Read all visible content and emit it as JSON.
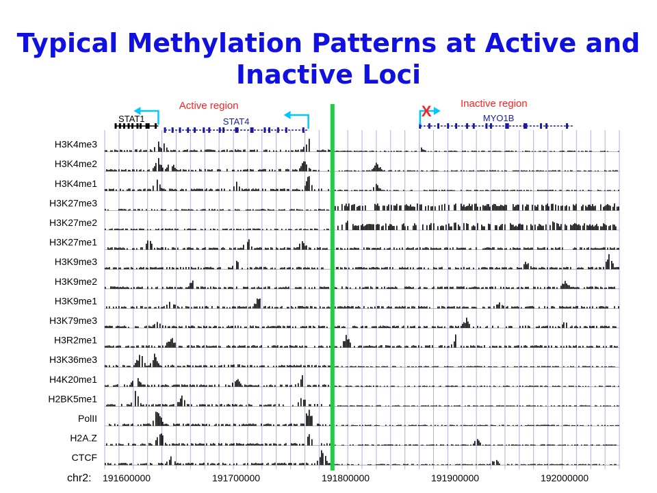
{
  "slide": {
    "title_line1": "Typical Methylation Patterns at Active and",
    "title_line2": "Inactive Loci"
  },
  "chart_data": {
    "type": "genome_tracks",
    "chromosome": "chr2:",
    "x_ticks": [
      191600000,
      191700000,
      191800000,
      191900000,
      192000000
    ],
    "x_tick_labels": [
      "191600000",
      "191700000",
      "191800000",
      "191900000",
      "192000000"
    ],
    "x_range": [
      191580000,
      192050000
    ],
    "region_labels": [
      {
        "text": "Active region",
        "color": "#ff2020"
      },
      {
        "text": "Inactive region",
        "color": "#ff2020"
      }
    ],
    "genes": [
      {
        "name": "STAT1",
        "start": 191590000,
        "end": 191629000,
        "strand": "-",
        "tss_arrow": "left",
        "arrow_color": "#00c8ff"
      },
      {
        "name": "STAT4",
        "start": 191635000,
        "end": 191766000,
        "strand": "-",
        "tss_arrow": "left",
        "arrow_color": "#00c8ff"
      },
      {
        "name": "MYO1B",
        "start": 191868000,
        "end": 192008000,
        "strand": "+",
        "tss_arrow": "right",
        "arrow_color": "#00c8ff",
        "tss_mark": "X",
        "tss_mark_color": "#ff2020"
      }
    ],
    "boundary_line": {
      "position": 191788000,
      "color": "#22cc44"
    },
    "tracks": [
      {
        "name": "H3K4me3",
        "peaks": [
          {
            "x": 191628000,
            "h": 0.7
          },
          {
            "x": 191633000,
            "h": 0.5
          },
          {
            "x": 191765000,
            "h": 0.9
          },
          {
            "x": 191868000,
            "h": 0.3
          }
        ]
      },
      {
        "name": "H3K4me2",
        "peaks": [
          {
            "x": 191628000,
            "h": 0.9
          },
          {
            "x": 191640000,
            "h": 0.6
          },
          {
            "x": 191762000,
            "h": 0.7
          },
          {
            "x": 191828000,
            "h": 0.5
          }
        ]
      },
      {
        "name": "H3K4me1",
        "peaks": [
          {
            "x": 191627000,
            "h": 0.8
          },
          {
            "x": 191700000,
            "h": 0.5
          },
          {
            "x": 191766000,
            "h": 0.9
          },
          {
            "x": 191828000,
            "h": 0.4
          }
        ]
      },
      {
        "name": "H3K27me3",
        "peaks": [
          {
            "x": 191800000,
            "h": 0.3
          },
          {
            "x": 191870000,
            "h": 0.6
          },
          {
            "x": 191950000,
            "h": 0.5
          },
          {
            "x": 192040000,
            "h": 0.4
          }
        ]
      },
      {
        "name": "H3K27me2",
        "peaks": [
          {
            "x": 191800000,
            "h": 0.6
          },
          {
            "x": 191900000,
            "h": 0.5
          },
          {
            "x": 191990000,
            "h": 0.6
          }
        ]
      },
      {
        "name": "H3K27me1",
        "peaks": [
          {
            "x": 191620000,
            "h": 0.6
          },
          {
            "x": 191710000,
            "h": 0.7
          },
          {
            "x": 191760000,
            "h": 0.6
          }
        ]
      },
      {
        "name": "H3K9me3",
        "peaks": [
          {
            "x": 191700000,
            "h": 0.5
          },
          {
            "x": 191965000,
            "h": 0.5
          },
          {
            "x": 192040000,
            "h": 0.8
          }
        ]
      },
      {
        "name": "H3K9me2",
        "peaks": [
          {
            "x": 191660000,
            "h": 0.5
          },
          {
            "x": 191850000,
            "h": 0.4
          },
          {
            "x": 192000000,
            "h": 0.5
          }
        ]
      },
      {
        "name": "H3K9me1",
        "peaks": [
          {
            "x": 191640000,
            "h": 0.6
          },
          {
            "x": 191720000,
            "h": 0.7
          },
          {
            "x": 191940000,
            "h": 0.5
          }
        ]
      },
      {
        "name": "H3K79me3",
        "peaks": [
          {
            "x": 191628000,
            "h": 0.6
          },
          {
            "x": 191910000,
            "h": 0.6
          },
          {
            "x": 192000000,
            "h": 0.5
          }
        ]
      },
      {
        "name": "H3R2me1",
        "peaks": [
          {
            "x": 191640000,
            "h": 0.7
          },
          {
            "x": 191800000,
            "h": 0.8
          },
          {
            "x": 191900000,
            "h": 0.7
          }
        ]
      },
      {
        "name": "H3K36me3",
        "peaks": [
          {
            "x": 191612000,
            "h": 0.9
          },
          {
            "x": 191625000,
            "h": 0.7
          },
          {
            "x": 191700000,
            "h": 0.3
          }
        ]
      },
      {
        "name": "H4K20me1",
        "peaks": [
          {
            "x": 191608000,
            "h": 0.9
          },
          {
            "x": 191700000,
            "h": 0.6
          },
          {
            "x": 191760000,
            "h": 0.8
          }
        ]
      },
      {
        "name": "H2BK5me1",
        "peaks": [
          {
            "x": 191608000,
            "h": 0.9
          },
          {
            "x": 191650000,
            "h": 0.6
          },
          {
            "x": 191760000,
            "h": 0.6
          }
        ]
      },
      {
        "name": "PolII",
        "peaks": [
          {
            "x": 191628000,
            "h": 1.0
          },
          {
            "x": 191766000,
            "h": 1.0
          }
        ]
      },
      {
        "name": "H2A.Z",
        "peaks": [
          {
            "x": 191630000,
            "h": 0.9
          },
          {
            "x": 191766000,
            "h": 0.8
          },
          {
            "x": 191920000,
            "h": 0.4
          }
        ]
      },
      {
        "name": "CTCF",
        "peaks": [
          {
            "x": 191640000,
            "h": 0.6
          },
          {
            "x": 191778000,
            "h": 1.0
          },
          {
            "x": 191936000,
            "h": 0.4
          }
        ]
      }
    ],
    "colors": {
      "signal": "#000000",
      "gridline": "#aab0e0",
      "baseline": "#999999",
      "label": "#000000"
    }
  }
}
